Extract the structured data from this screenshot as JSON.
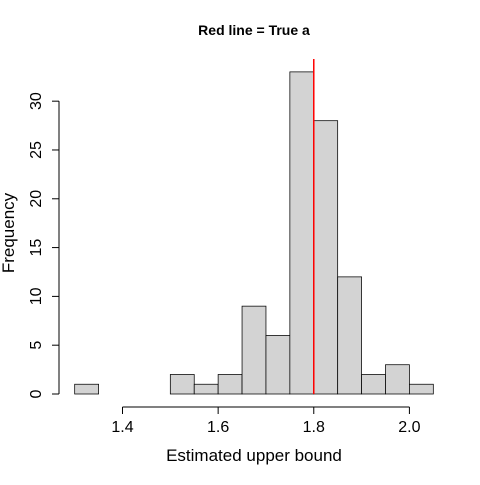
{
  "chart_data": {
    "type": "histogram",
    "title": "Red line = True a",
    "xlabel": "Estimated upper bound",
    "ylabel": "Frequency",
    "bin_edges": [
      1.3,
      1.35,
      1.4,
      1.45,
      1.5,
      1.55,
      1.6,
      1.65,
      1.7,
      1.75,
      1.8,
      1.85,
      1.9,
      1.95,
      2.0,
      2.05
    ],
    "counts": [
      1,
      0,
      0,
      0,
      2,
      1,
      2,
      9,
      6,
      33,
      28,
      12,
      2,
      3,
      1
    ],
    "x_ticks": [
      1.4,
      1.6,
      1.8,
      2.0
    ],
    "x_tick_labels": [
      "1.4",
      "1.6",
      "1.8",
      "2.0"
    ],
    "y_ticks": [
      0,
      5,
      10,
      15,
      20,
      25,
      30
    ],
    "y_tick_labels": [
      "0",
      "5",
      "10",
      "15",
      "20",
      "25",
      "30"
    ],
    "xlim": [
      1.2672,
      2.0828
    ],
    "ylim": [
      0,
      34.32
    ],
    "reference_line": {
      "x": 1.8,
      "color": "#ff0000"
    },
    "bar_fill": "#d3d3d3",
    "bar_stroke": "#000000"
  }
}
